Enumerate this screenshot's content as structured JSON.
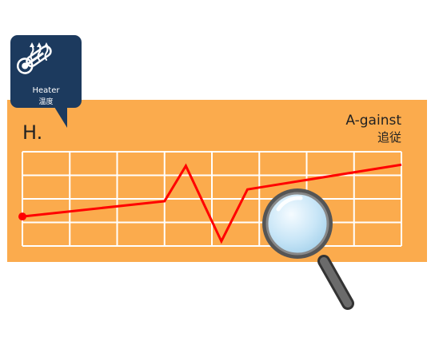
{
  "badge": {
    "label_en": "Heater",
    "label_ja": "温度",
    "icon": "thermometer-heat-icon"
  },
  "title": "H.",
  "right_label_en": "A-gainst",
  "right_label_ja": "追従",
  "colors": {
    "panel": "#fbab4d",
    "badge": "#1c3a5e",
    "line": "#ff0000",
    "grid": "#ffffff"
  },
  "chart_data": {
    "type": "line",
    "title": "",
    "xlabel": "",
    "ylabel": "",
    "xlim": [
      0,
      8
    ],
    "ylim": [
      0,
      4
    ],
    "grid": true,
    "series": [
      {
        "name": "",
        "marker_at_start": true,
        "points": [
          [
            0,
            1.25
          ],
          [
            3,
            1.9
          ],
          [
            3.45,
            3.4
          ],
          [
            4.2,
            0.2
          ],
          [
            4.75,
            2.4
          ],
          [
            8,
            3.45
          ]
        ]
      }
    ]
  },
  "magnifier": {
    "icon": "magnifying-glass-icon"
  }
}
